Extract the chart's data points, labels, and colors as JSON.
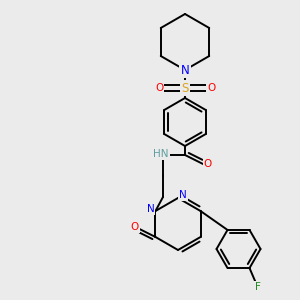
{
  "bg_color": "#ebebeb",
  "line_color": "#000000",
  "lw": 1.4,
  "fig_size": [
    3.0,
    3.0
  ],
  "dpi": 100,
  "colors": {
    "N": "#0000FF",
    "O": "#FF0000",
    "S": "#DAA520",
    "F": "#228B22",
    "HN": "#5F9EA0",
    "C": "#000000"
  },
  "font_size": 7.5
}
